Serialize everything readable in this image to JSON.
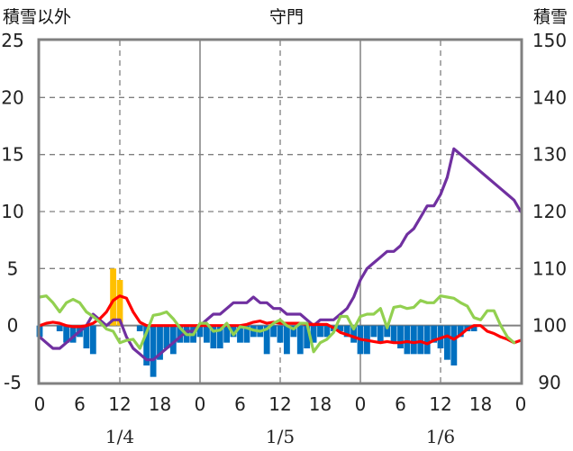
{
  "chart_data": {
    "type": "bar+line",
    "title": "守門",
    "left_axis_label": "積雪以外",
    "right_axis_label": "積雪",
    "left_ylim": [
      -5,
      25
    ],
    "left_yticks": [
      "25",
      "20",
      "15",
      "10",
      "5",
      "0",
      "-5"
    ],
    "right_ylim": [
      90,
      150
    ],
    "right_yticks": [
      "150",
      "140",
      "130",
      "120",
      "110",
      "100",
      "90"
    ],
    "x_range_hours": [
      0,
      72
    ],
    "x_ticks": [
      {
        "h": 0,
        "label": "0"
      },
      {
        "h": 6,
        "label": "6"
      },
      {
        "h": 12,
        "label": "12"
      },
      {
        "h": 18,
        "label": "18"
      },
      {
        "h": 24,
        "label": "0"
      },
      {
        "h": 30,
        "label": "6"
      },
      {
        "h": 36,
        "label": "12"
      },
      {
        "h": 42,
        "label": "18"
      },
      {
        "h": 48,
        "label": "0"
      },
      {
        "h": 54,
        "label": "6"
      },
      {
        "h": 60,
        "label": "12"
      },
      {
        "h": 66,
        "label": "18"
      },
      {
        "h": 72,
        "label": "0"
      }
    ],
    "dates": [
      {
        "h": 12,
        "label": "1/4"
      },
      {
        "h": 36,
        "label": "1/5"
      },
      {
        "h": 60,
        "label": "1/6"
      }
    ],
    "colors": {
      "precip_orange": "#FFC000",
      "bar_blue": "#0070C0",
      "purple": "#7030A0",
      "red": "#FF0000",
      "green": "#92D050"
    },
    "series": [
      {
        "name": "orange-bars",
        "kind": "bar",
        "axis": "left",
        "color": "#FFC000",
        "x": [
          11,
          12
        ],
        "y": [
          5,
          4
        ]
      },
      {
        "name": "blue-bars",
        "kind": "bar",
        "axis": "left",
        "color": "#0070C0",
        "x": [
          0,
          3,
          4,
          5,
          6,
          7,
          8,
          15,
          16,
          17,
          18,
          19,
          20,
          21,
          22,
          23,
          24,
          25,
          26,
          27,
          28,
          29,
          30,
          31,
          32,
          33,
          34,
          35,
          36,
          37,
          38,
          39,
          40,
          41,
          42,
          43,
          44,
          45,
          46,
          47,
          48,
          49,
          50,
          51,
          52,
          53,
          54,
          55,
          56,
          57,
          58,
          59,
          60,
          61,
          62,
          63,
          64,
          65
        ],
        "y": [
          -1,
          -0.5,
          -1.5,
          -1.5,
          -1,
          -2,
          -2.5,
          -0.5,
          -3.5,
          -4.5,
          -3,
          -2,
          -2.5,
          -1.5,
          -1.5,
          -1.5,
          -1,
          -1.5,
          -2,
          -2,
          -1.5,
          -1,
          -1.5,
          -1.5,
          -1,
          -1,
          -2.5,
          -1,
          -1.5,
          -2.5,
          -1,
          -2.5,
          -2,
          -1.5,
          -1,
          -1,
          -0.5,
          -0.5,
          -1,
          -1.5,
          -2.5,
          -2.5,
          -1,
          -1.5,
          -1,
          -1.5,
          -2,
          -2.5,
          -2.5,
          -2.5,
          -2.5,
          -1.5,
          -2,
          -3,
          -3.5,
          -1,
          -0.5,
          -0.5
        ]
      },
      {
        "name": "purple-line",
        "kind": "line",
        "axis": "right",
        "color": "#7030A0",
        "x": [
          0,
          1,
          2,
          3,
          4,
          5,
          6,
          7,
          8,
          9,
          10,
          11,
          12,
          13,
          14,
          15,
          16,
          17,
          18,
          19,
          20,
          21,
          22,
          23,
          24,
          25,
          26,
          27,
          28,
          29,
          30,
          31,
          32,
          33,
          34,
          35,
          36,
          37,
          38,
          39,
          40,
          41,
          42,
          43,
          44,
          45,
          46,
          47,
          48,
          49,
          50,
          51,
          52,
          53,
          54,
          55,
          56,
          57,
          58,
          59,
          60,
          61,
          62,
          63,
          64,
          65,
          66,
          67,
          68,
          69,
          70,
          71,
          72
        ],
        "y": [
          98,
          97,
          96,
          96,
          97,
          98,
          99,
          100,
          102,
          101,
          100,
          101,
          101,
          98,
          96,
          95,
          94,
          94,
          95,
          96,
          97,
          98,
          99,
          99,
          100,
          101,
          102,
          102,
          103,
          104,
          104,
          104,
          105,
          104,
          104,
          103,
          103,
          102,
          102,
          102,
          101,
          100,
          101,
          101,
          101,
          102,
          103,
          105,
          108,
          110,
          111,
          112,
          113,
          113,
          114,
          116,
          117,
          119,
          121,
          121,
          123,
          126,
          131,
          130,
          129,
          128,
          127,
          126,
          125,
          124,
          123,
          122,
          120
        ]
      },
      {
        "name": "red-line",
        "kind": "line",
        "axis": "left",
        "color": "#FF0000",
        "x": [
          0,
          1,
          2,
          3,
          4,
          5,
          6,
          7,
          8,
          9,
          10,
          11,
          12,
          13,
          14,
          15,
          16,
          17,
          18,
          19,
          20,
          21,
          22,
          23,
          24,
          25,
          26,
          27,
          28,
          29,
          30,
          31,
          32,
          33,
          34,
          35,
          36,
          37,
          38,
          39,
          40,
          41,
          42,
          43,
          44,
          45,
          46,
          47,
          48,
          49,
          50,
          51,
          52,
          53,
          54,
          55,
          56,
          57,
          58,
          59,
          60,
          61,
          62,
          63,
          64,
          65,
          66,
          67,
          68,
          69,
          70,
          71,
          72
        ],
        "y": [
          0,
          0.2,
          0.3,
          0.2,
          0,
          -0.1,
          -0.1,
          0,
          0.2,
          0.6,
          1.2,
          2.2,
          2.6,
          2.4,
          1.2,
          0.3,
          0,
          0,
          0,
          0,
          0,
          0,
          0,
          0,
          0,
          0,
          0,
          0,
          0,
          0,
          0,
          0.1,
          0.3,
          0.4,
          0.2,
          0.3,
          0.2,
          0.2,
          0.2,
          0.2,
          0.1,
          0.1,
          0.1,
          0.1,
          -0.2,
          -0.6,
          -0.8,
          -1,
          -1.2,
          -1.3,
          -1.4,
          -1.5,
          -1.4,
          -1.5,
          -1.5,
          -1.4,
          -1.5,
          -1.4,
          -1.6,
          -1.3,
          -1.1,
          -0.9,
          -1.2,
          -0.8,
          -0.3,
          0,
          0,
          -0.5,
          -0.7,
          -1,
          -1.2,
          -1.5,
          -1.3
        ]
      },
      {
        "name": "green-line",
        "kind": "line",
        "axis": "left",
        "color": "#92D050",
        "x": [
          0,
          1,
          2,
          3,
          4,
          5,
          6,
          7,
          8,
          9,
          10,
          11,
          12,
          13,
          14,
          15,
          16,
          17,
          18,
          19,
          20,
          21,
          22,
          23,
          24,
          25,
          26,
          27,
          28,
          29,
          30,
          31,
          32,
          33,
          34,
          35,
          36,
          37,
          38,
          39,
          40,
          41,
          42,
          43,
          44,
          45,
          46,
          47,
          48,
          49,
          50,
          51,
          52,
          53,
          54,
          55,
          56,
          57,
          58,
          59,
          60,
          61,
          62,
          63,
          64,
          65,
          66,
          67,
          68,
          69,
          70,
          71
        ],
        "y": [
          2.5,
          2.6,
          2,
          1.2,
          2,
          2.3,
          2,
          1.2,
          0.8,
          0.3,
          -0.3,
          -0.5,
          -1.5,
          -1.3,
          -1.2,
          -2,
          -0.6,
          0.9,
          1,
          1.2,
          0.6,
          -0.2,
          -0.8,
          -0.8,
          0.2,
          0.2,
          -0.5,
          -0.4,
          0.2,
          -0.8,
          -0.1,
          -0.2,
          -0.4,
          -0.5,
          -0.3,
          0.2,
          0.5,
          0,
          -0.3,
          0.2,
          0.2,
          -2.3,
          -1.5,
          -1.2,
          -0.6,
          0.8,
          0.8,
          -0.3,
          0.8,
          1,
          1,
          1.5,
          -0.2,
          1.6,
          1.7,
          1.5,
          1.6,
          2.2,
          2,
          2,
          2.6,
          2.5,
          2.4,
          2,
          1.7,
          0.7,
          0.5,
          1.3,
          1.3,
          0,
          -1,
          -1.5
        ]
      }
    ]
  }
}
